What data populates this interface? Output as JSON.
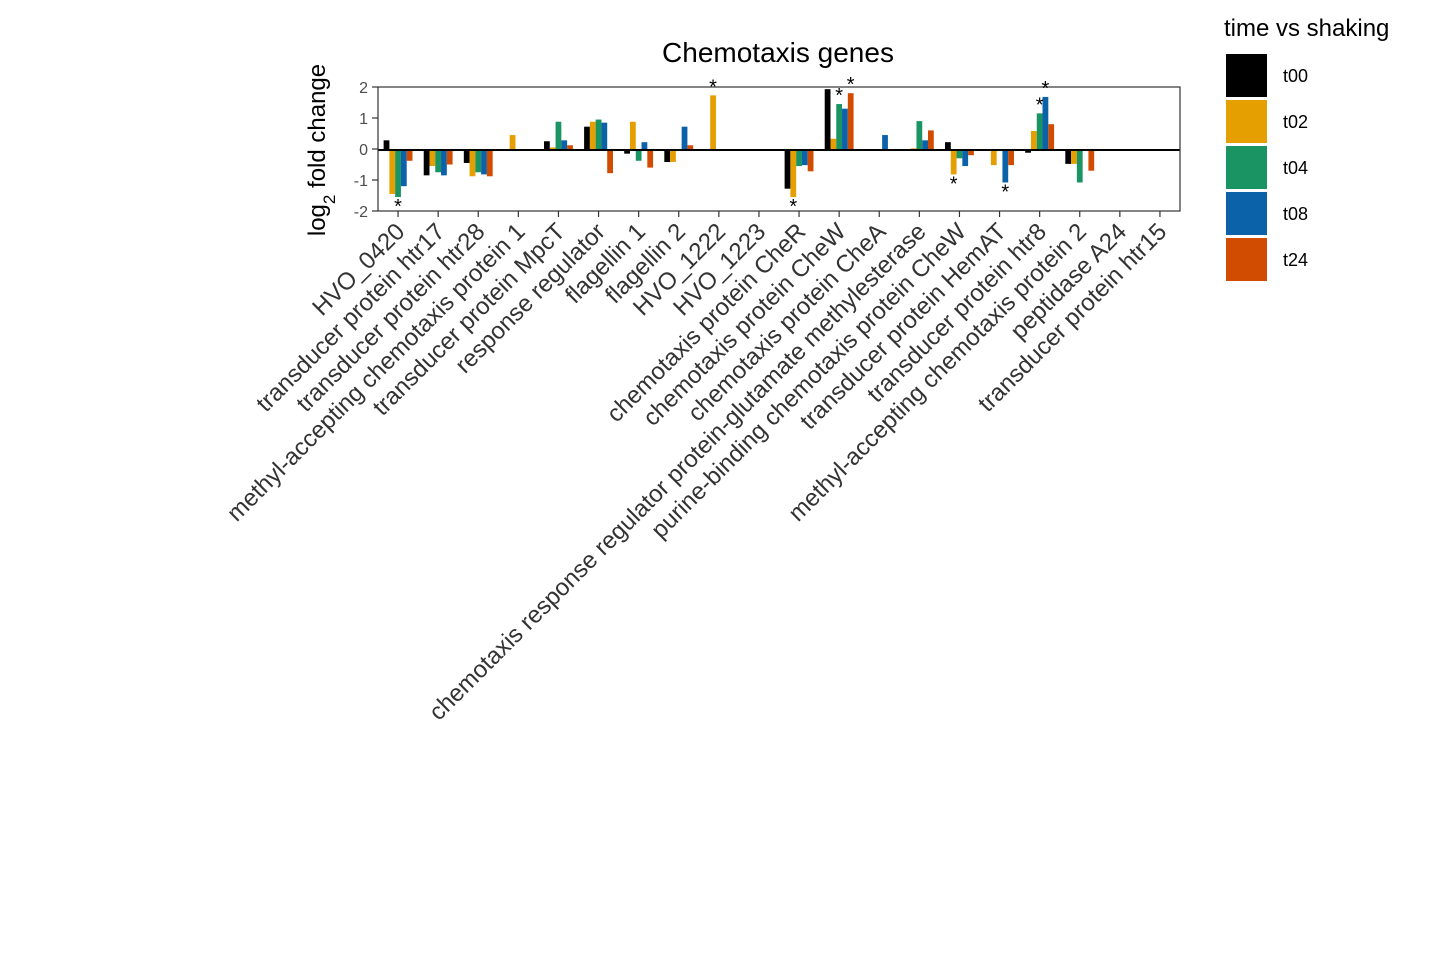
{
  "chart_data": {
    "type": "bar",
    "title": "Chemotaxis genes",
    "ylabel_main": "log",
    "ylabel_sub": "2",
    "ylabel_rest": " fold change",
    "ylim": [
      -2,
      2
    ],
    "yticks": [
      -2,
      -1,
      0,
      1,
      2
    ],
    "grid": false,
    "legend_title": "time vs shaking",
    "legend_position": "right",
    "categories": [
      "HVO_0420",
      "transducer protein htr17",
      "transducer protein htr28",
      "methyl-accepting chemotaxis protein 1",
      "transducer protein MpcT",
      "response regulator",
      "flagellin 1",
      "flagellin 2",
      "HVO_1222",
      "HVO_1223",
      "chemotaxis protein CheR",
      "chemotaxis protein CheW",
      "chemotaxis protein CheA",
      "chemotaxis response regulator protein-glutamate methylesterase",
      "purine-binding chemotaxis protein CheW",
      "transducer protein HemAT",
      "transducer protein htr8",
      "methyl-accepting chemotaxis protein 2",
      "peptidase A24",
      "transducer protein htr15"
    ],
    "series": [
      {
        "name": "t00",
        "color": "#000000",
        "values": [
          0.28,
          -0.85,
          -0.45,
          0,
          0.25,
          0.72,
          -0.15,
          -0.42,
          0,
          0,
          -1.28,
          1.93,
          0,
          0,
          0.22,
          0,
          -0.12,
          -0.48,
          0,
          0
        ]
      },
      {
        "name": "t02",
        "color": "#E69F00",
        "values": [
          -1.45,
          -0.55,
          -0.88,
          0.45,
          0.05,
          0.88,
          0.88,
          -0.42,
          1.73,
          0,
          -1.55,
          0.33,
          0,
          0.02,
          -0.82,
          -0.52,
          0.58,
          -0.48,
          0,
          0
        ]
      },
      {
        "name": "t04",
        "color": "#1A9463",
        "values": [
          -1.55,
          -0.75,
          -0.75,
          0,
          0.88,
          0.95,
          -0.38,
          -0.02,
          0,
          0,
          -0.55,
          1.45,
          0,
          0.9,
          -0.3,
          0,
          1.15,
          -1.08,
          0,
          0
        ]
      },
      {
        "name": "t08",
        "color": "#0B62A8",
        "values": [
          -1.2,
          -0.85,
          -0.82,
          0,
          0.28,
          0.85,
          0.22,
          0.72,
          0,
          0,
          -0.52,
          1.3,
          0.45,
          0.28,
          -0.55,
          -1.08,
          1.68,
          0,
          0,
          0
        ]
      },
      {
        "name": "t24",
        "color": "#D14B00",
        "values": [
          -0.38,
          -0.5,
          -0.88,
          0,
          0.12,
          -0.78,
          -0.6,
          0.12,
          0,
          0,
          -0.72,
          1.8,
          0,
          0.6,
          -0.2,
          -0.52,
          0.8,
          -0.7,
          0,
          0
        ]
      }
    ],
    "significance": [
      {
        "category": 0,
        "series": "t04",
        "symbol": "*"
      },
      {
        "category": 8,
        "series": "t02",
        "symbol": "*"
      },
      {
        "category": 10,
        "series": "t02",
        "symbol": "*"
      },
      {
        "category": 11,
        "series": "t04",
        "symbol": "*"
      },
      {
        "category": 11,
        "series": "t24",
        "symbol": "*"
      },
      {
        "category": 14,
        "series": "t02",
        "symbol": "*"
      },
      {
        "category": 15,
        "series": "t08",
        "symbol": "*"
      },
      {
        "category": 16,
        "series": "t04",
        "symbol": "*"
      },
      {
        "category": 16,
        "series": "t08",
        "symbol": "*"
      }
    ]
  }
}
